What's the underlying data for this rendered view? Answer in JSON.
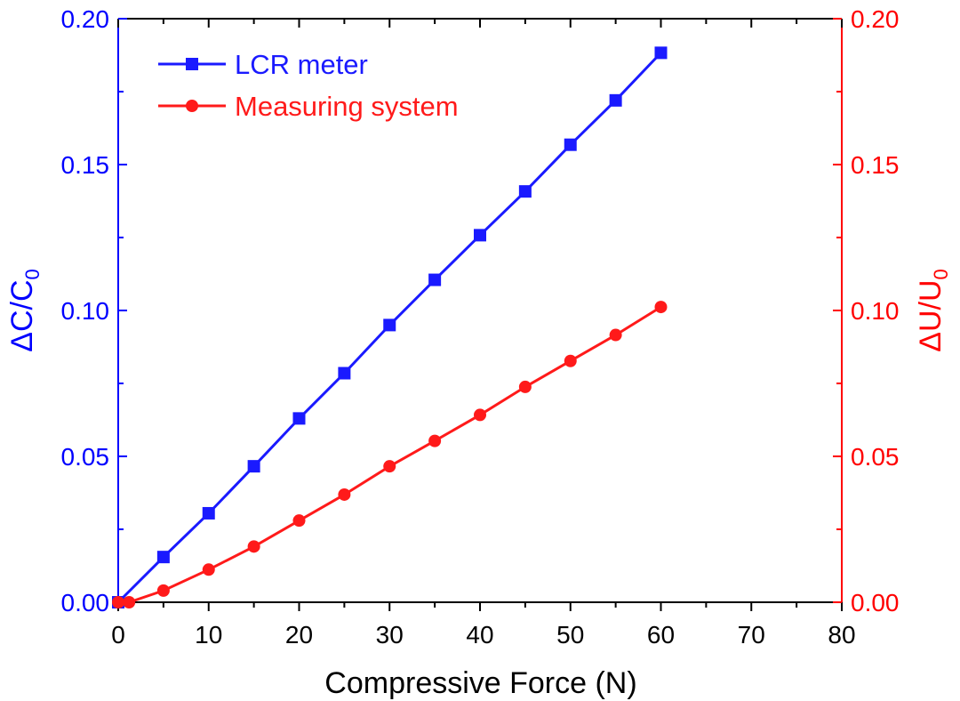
{
  "chart_data": {
    "type": "line",
    "title": "",
    "xlabel": "Compressive Force (N)",
    "ylabel_left": {
      "main": "ΔC/C",
      "sub": "0"
    },
    "ylabel_right": {
      "main": "ΔU/U",
      "sub": "0"
    },
    "xlim": [
      0,
      80
    ],
    "ylim_left": [
      0,
      0.2
    ],
    "ylim_right": [
      0,
      0.2
    ],
    "x_ticks": [
      "0",
      "10",
      "20",
      "30",
      "40",
      "50",
      "60",
      "70",
      "80"
    ],
    "y_ticks_left": [
      "0.00",
      "0.05",
      "0.10",
      "0.15",
      "0.20"
    ],
    "y_ticks_right": [
      "0.00",
      "0.05",
      "0.10",
      "0.15",
      "0.20"
    ],
    "grid": false,
    "legend_position": "top-left",
    "colors": {
      "left_axis": "#0000ff",
      "right_axis": "#ff0000",
      "frame": "#000000"
    },
    "series": [
      {
        "name": "LCR meter",
        "axis": "left",
        "color": "#1a1aff",
        "marker": "square",
        "x": [
          0,
          5,
          10,
          15,
          20,
          25,
          30,
          35,
          40,
          45,
          50,
          55,
          60
        ],
        "y": [
          0.0,
          0.0155,
          0.0305,
          0.0466,
          0.063,
          0.0785,
          0.095,
          0.1105,
          0.1258,
          0.1408,
          0.1568,
          0.172,
          0.1883
        ]
      },
      {
        "name": "Measuring system",
        "axis": "right",
        "color": "#ff1a1a",
        "marker": "circle",
        "x": [
          0,
          1.2,
          5,
          10,
          15,
          20,
          25,
          30,
          35,
          40,
          45,
          50,
          55,
          60
        ],
        "y": [
          0.0,
          0.0,
          0.004,
          0.0112,
          0.0191,
          0.028,
          0.0369,
          0.0466,
          0.0553,
          0.0642,
          0.0738,
          0.0827,
          0.0916,
          0.1012
        ]
      }
    ]
  }
}
